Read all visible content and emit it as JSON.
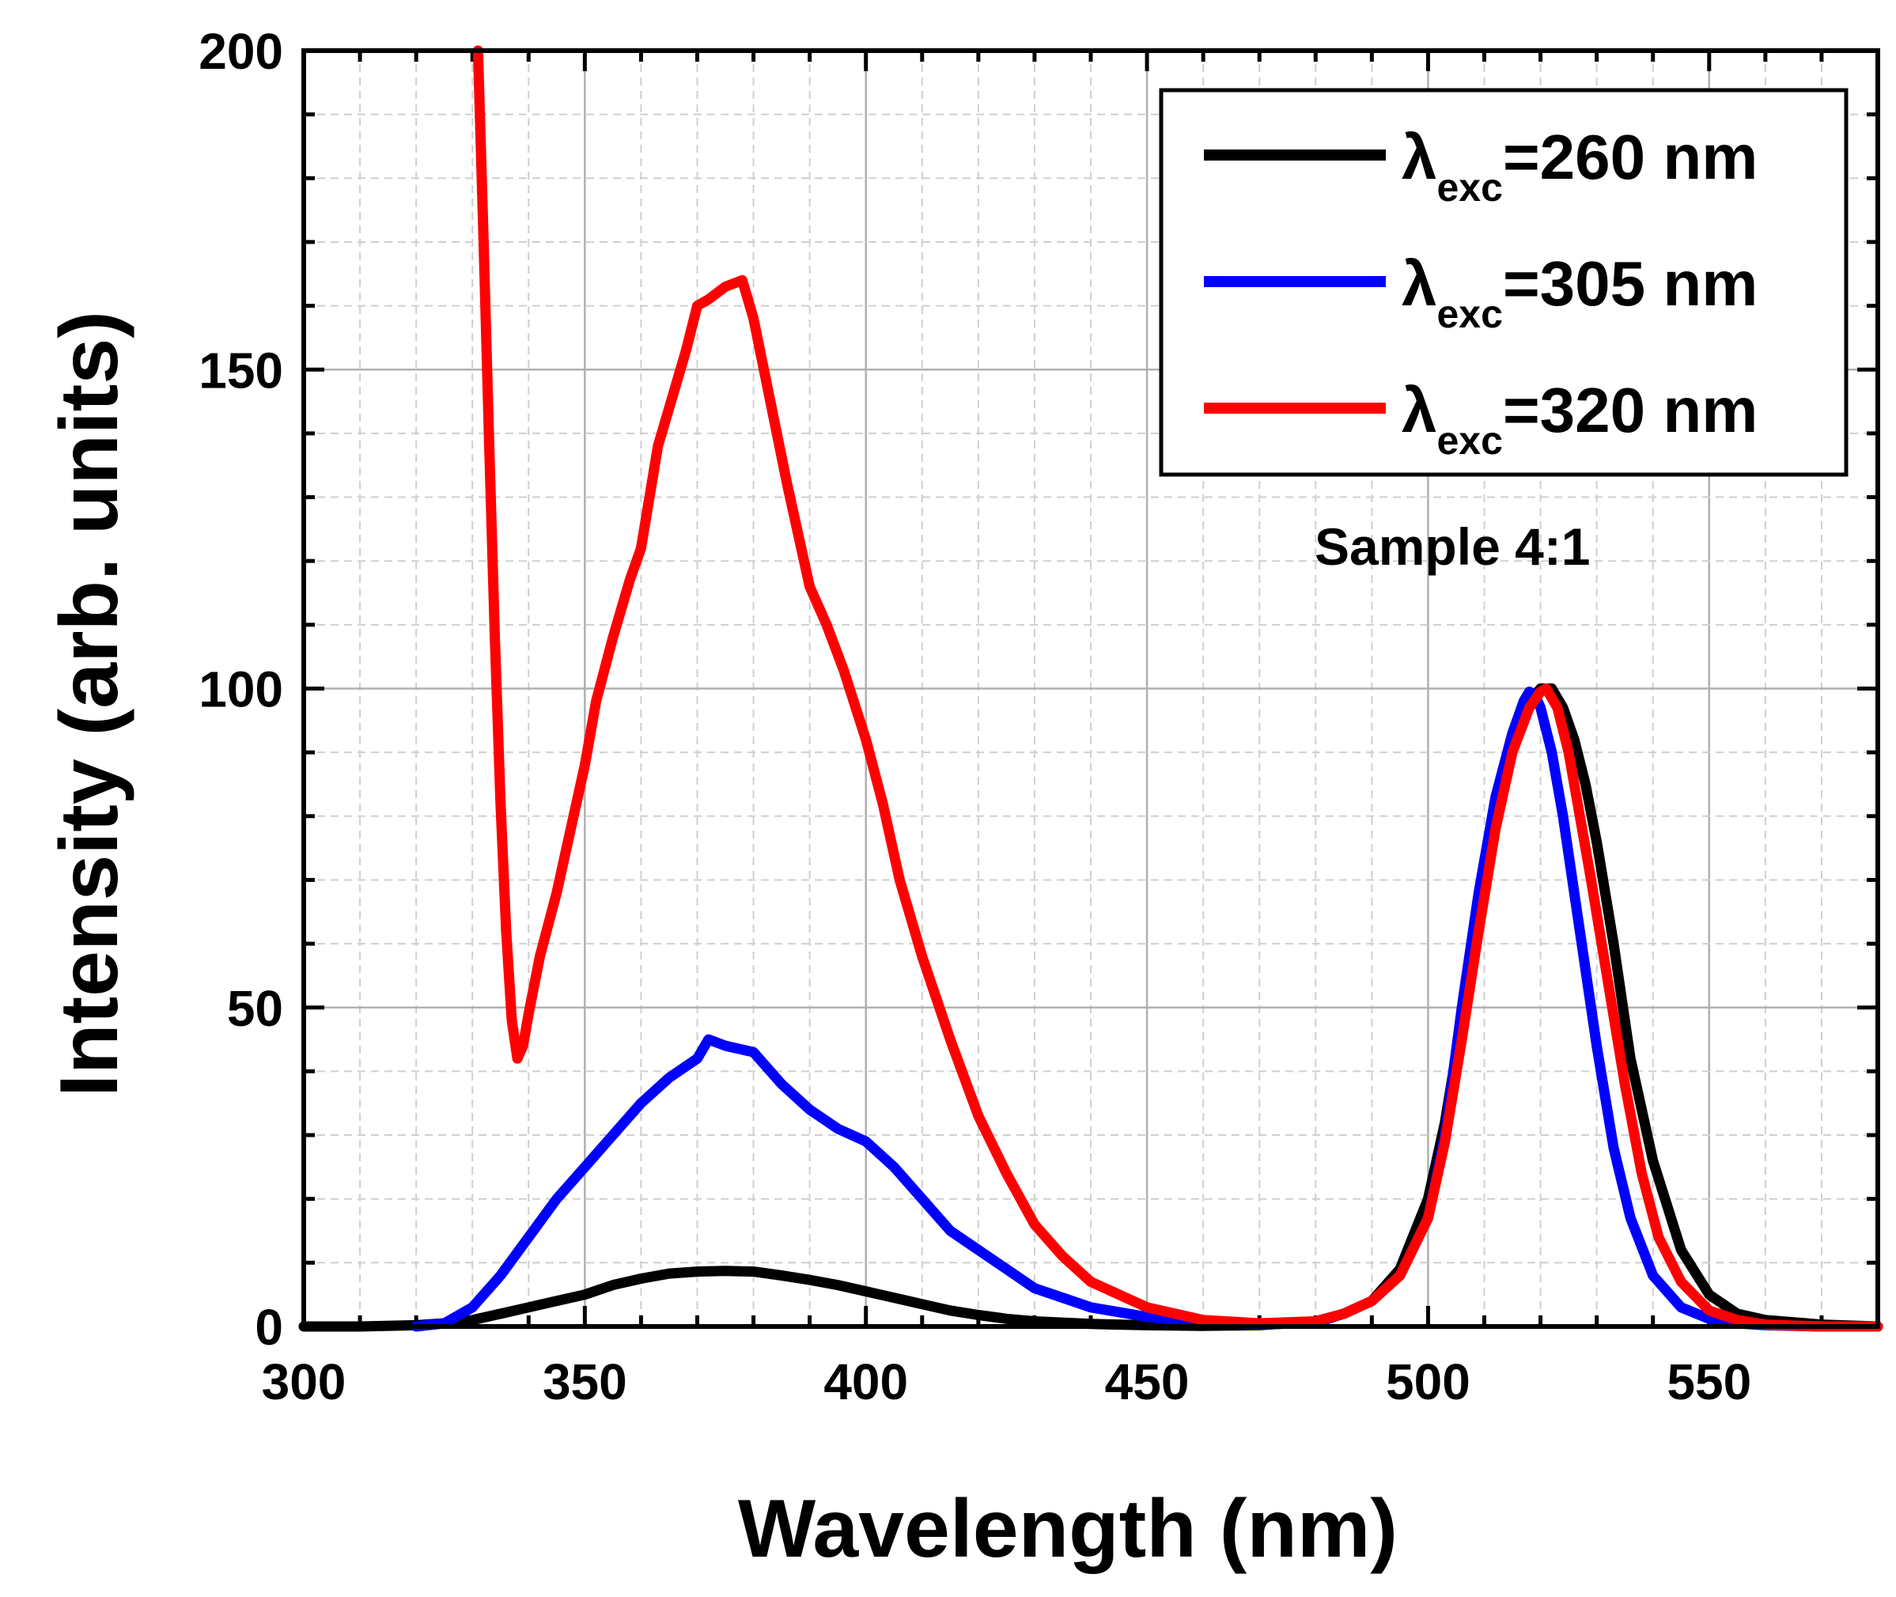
{
  "chart_data": {
    "type": "line",
    "title": "",
    "xlabel": "Wavelength (nm)",
    "ylabel": "Intensity (arb. units)",
    "xlim": [
      300,
      580
    ],
    "ylim": [
      0,
      200
    ],
    "xticks": [
      300,
      350,
      400,
      450,
      500,
      550
    ],
    "yticks": [
      0,
      50,
      100,
      150,
      200
    ],
    "grid": true,
    "legend_position": "top-right",
    "annotation": "Sample 4:1",
    "series": [
      {
        "name": "λexc=260 nm",
        "label_main": "λ",
        "label_sub": "exc",
        "label_tail": "=260 nm",
        "color": "#000000",
        "x": [
          300,
          310,
          320,
          325,
          330,
          335,
          340,
          345,
          350,
          355,
          360,
          365,
          370,
          375,
          380,
          385,
          390,
          395,
          400,
          405,
          410,
          415,
          420,
          425,
          430,
          440,
          450,
          460,
          470,
          480,
          485,
          490,
          495,
          500,
          503,
          506,
          509,
          512,
          515,
          518,
          520,
          522,
          524,
          526,
          528,
          530,
          533,
          536,
          540,
          545,
          550,
          555,
          560,
          570,
          580
        ],
        "y": [
          0,
          0,
          0.2,
          0.5,
          1,
          2,
          3,
          4,
          5,
          6.5,
          7.5,
          8.3,
          8.6,
          8.7,
          8.6,
          8,
          7.3,
          6.5,
          5.5,
          4.5,
          3.5,
          2.5,
          1.8,
          1.2,
          0.8,
          0.4,
          0.2,
          0.1,
          0.2,
          0.8,
          2,
          4,
          9,
          20,
          32,
          48,
          65,
          80,
          92,
          98,
          100,
          100,
          97,
          92,
          85,
          76,
          60,
          42,
          26,
          12,
          5,
          2,
          1,
          0.3,
          0
        ]
      },
      {
        "name": "λexc=305 nm",
        "label_main": "λ",
        "label_sub": "exc",
        "label_tail": "=305 nm",
        "color": "#0000ff",
        "x": [
          320,
          325,
          330,
          335,
          340,
          345,
          350,
          355,
          360,
          365,
          370,
          372,
          375,
          380,
          385,
          390,
          395,
          400,
          405,
          410,
          415,
          420,
          425,
          430,
          435,
          440,
          450,
          460,
          470,
          480,
          485,
          490,
          495,
          500,
          503,
          506,
          509,
          512,
          515,
          517,
          518,
          519,
          520,
          522,
          524,
          526,
          528,
          530,
          533,
          536,
          540,
          545,
          550,
          555,
          560,
          570,
          580
        ],
        "y": [
          0,
          0.5,
          3,
          8,
          14,
          20,
          25,
          30,
          35,
          39,
          42,
          45,
          44,
          43,
          38,
          34,
          31,
          29,
          25,
          20,
          15,
          12,
          9,
          6,
          4.5,
          3,
          1.5,
          0.6,
          0.3,
          0.6,
          2,
          4,
          8,
          17,
          30,
          50,
          68,
          83,
          93,
          98,
          99.5,
          99,
          97,
          90,
          80,
          68,
          56,
          44,
          28,
          17,
          8,
          3,
          1.2,
          0.5,
          0.2,
          0,
          0
        ]
      },
      {
        "name": "λexc=320 nm",
        "label_main": "λ",
        "label_sub": "exc",
        "label_tail": "=320 nm",
        "color": "#ff0000",
        "x": [
          331,
          332,
          333,
          334,
          335,
          336,
          337,
          338,
          339,
          340,
          342,
          345,
          348,
          350,
          352,
          355,
          358,
          360,
          363,
          365,
          368,
          370,
          372,
          375,
          378,
          380,
          383,
          386,
          390,
          393,
          396,
          400,
          403,
          406,
          410,
          415,
          420,
          425,
          430,
          435,
          440,
          450,
          460,
          470,
          480,
          485,
          490,
          495,
          500,
          503,
          506,
          509,
          512,
          515,
          518,
          520,
          521,
          523,
          525,
          527,
          529,
          532,
          535,
          538,
          541,
          545,
          550,
          555,
          560,
          570,
          580
        ],
        "y": [
          200,
          170,
          138,
          108,
          82,
          62,
          48,
          42,
          44,
          49,
          58,
          68,
          80,
          88,
          98,
          108,
          117,
          122,
          138,
          144,
          153,
          160,
          161,
          163,
          164,
          158,
          145,
          132,
          116,
          110,
          103,
          92,
          82,
          70,
          58,
          45,
          33,
          24,
          16,
          11,
          7,
          3,
          1,
          0.5,
          0.8,
          2,
          4,
          8,
          17,
          29,
          45,
          62,
          78,
          90,
          97,
          99.5,
          100,
          97,
          90,
          80,
          70,
          54,
          38,
          24,
          14,
          7,
          2.5,
          1,
          0.3,
          0,
          0
        ]
      }
    ]
  }
}
